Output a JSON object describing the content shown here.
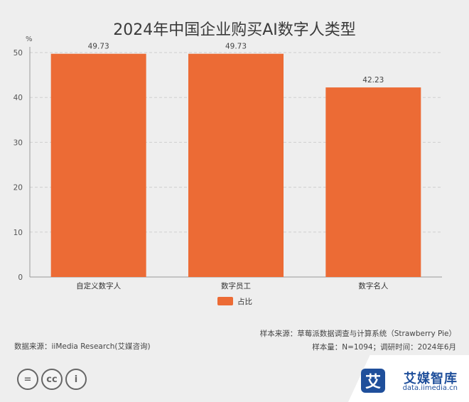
{
  "title": "2024年中国企业购买AI数字人类型",
  "chart_data": {
    "type": "bar",
    "ylabel": "%",
    "categories": [
      "自定义数字人",
      "数字员工",
      "数字名人"
    ],
    "series": [
      {
        "name": "占比",
        "values": [
          49.73,
          49.73,
          42.23
        ]
      }
    ],
    "data_labels": [
      "49.73",
      "49.73",
      "42.23"
    ],
    "ylim": [
      0,
      50
    ],
    "yticks": [
      0,
      10,
      20,
      30,
      40,
      50
    ],
    "grid": true,
    "legend": "bottom",
    "bar_color": "#ec6b35"
  },
  "footer": {
    "source": "数据来源：iiMedia Research(艾媒咨询)",
    "sample_source": "样本来源：草莓派数据调查与计算系统（Strawberry Pie）",
    "sample_size": "样本量：N=1094；调研时间：2024年6月"
  },
  "brand": {
    "logo_char": "艾",
    "name": "艾媒智库",
    "url": "data.iimedia.cn"
  },
  "cc_icons": [
    "=",
    "cc",
    "i"
  ],
  "icons": [
    "equal-icon",
    "cc-icon",
    "person-icon"
  ]
}
